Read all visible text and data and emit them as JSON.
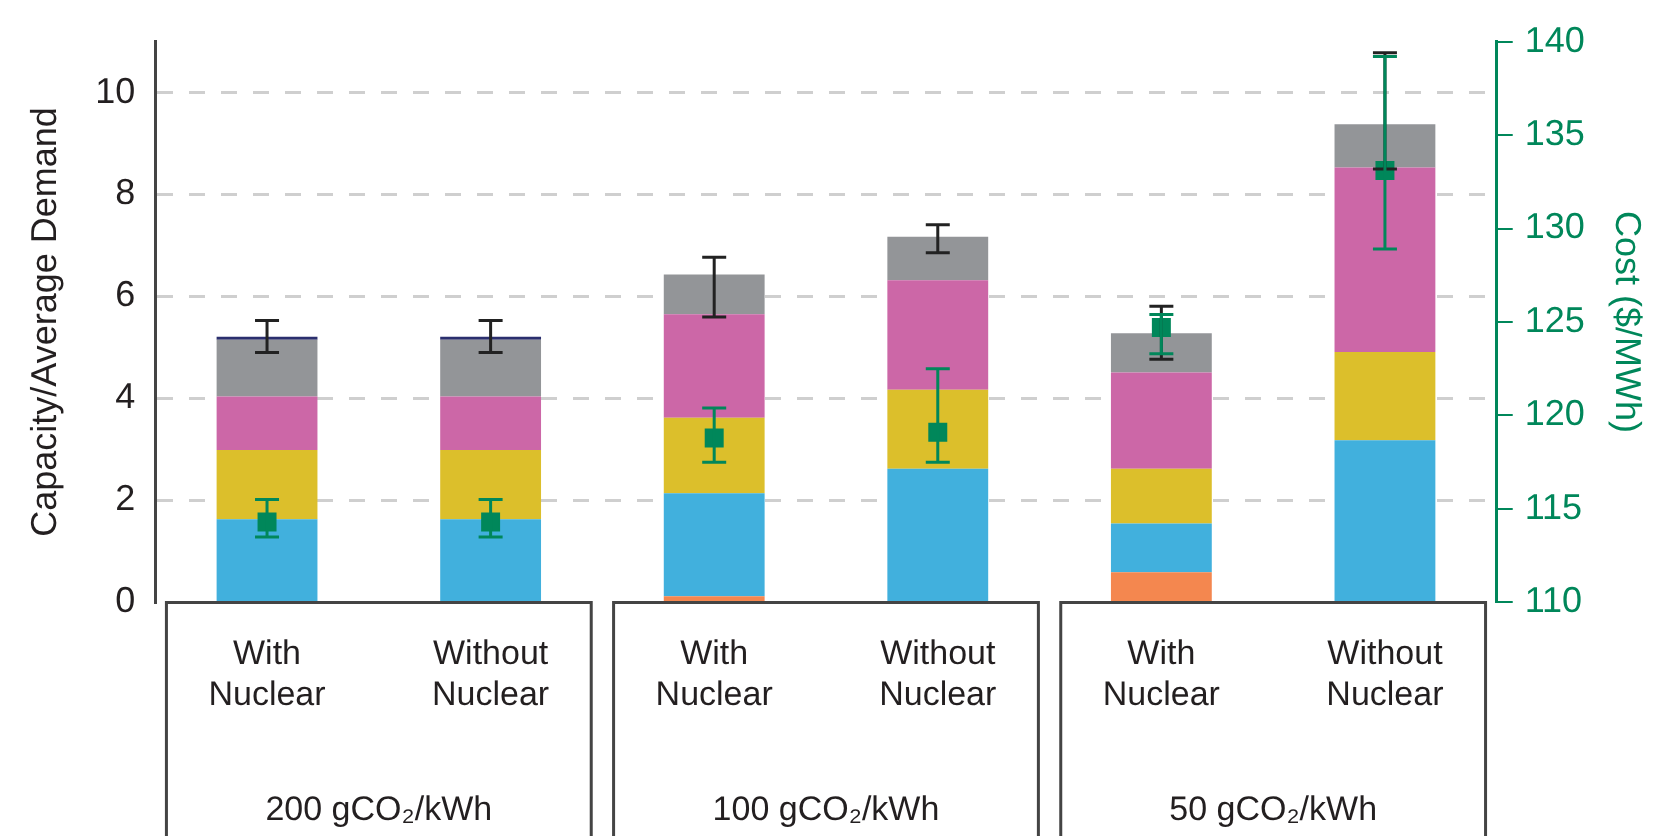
{
  "chart_data": {
    "type": "bar",
    "stacked": true,
    "categories": [
      "With Nuclear",
      "Without Nuclear",
      "With Nuclear",
      "Without Nuclear",
      "With Nuclear",
      "Without Nuclear"
    ],
    "ylabel": "Capacity/Average Demand",
    "y2label": "Cost ($/MWh)",
    "ylim": [
      0,
      11
    ],
    "yticks": [
      0,
      2,
      4,
      6,
      8,
      10
    ],
    "y2lim": [
      110,
      140
    ],
    "y2ticks": [
      110,
      115,
      120,
      125,
      130,
      135,
      140
    ],
    "grid": "y",
    "legend": false,
    "series": [
      {
        "color": "#f4874f",
        "values": [
          null,
          null,
          0.12,
          null,
          0.59,
          null
        ]
      },
      {
        "color": "#41b0dd",
        "values": [
          1.63,
          1.63,
          2.02,
          2.62,
          0.96,
          3.18
        ]
      },
      {
        "color": "#dcbf2b",
        "values": [
          1.36,
          1.36,
          1.48,
          1.55,
          1.07,
          1.73
        ]
      },
      {
        "color": "#cc67a7",
        "values": [
          1.05,
          1.05,
          2.03,
          2.15,
          1.89,
          3.62
        ]
      },
      {
        "color": "#939598",
        "values": [
          1.11,
          1.11,
          0.78,
          0.85,
          0.77,
          0.85
        ],
        "errors": [
          [
            4.9,
            5.53
          ],
          [
            4.9,
            5.53
          ],
          [
            5.6,
            6.77
          ],
          [
            6.86,
            7.41
          ],
          [
            4.77,
            5.81
          ],
          [
            8.5,
            10.78
          ]
        ]
      },
      {
        "color": "#2b2f6e",
        "values": [
          0.06,
          0.06,
          null,
          null,
          null,
          null
        ]
      },
      {
        "type": "scatter",
        "axis": "y2",
        "color": "#00875a",
        "marker": "square",
        "values": [
          114.3,
          114.3,
          118.8,
          119.1,
          124.7,
          133.1
        ],
        "errors": [
          [
            113.5,
            115.5
          ],
          [
            113.5,
            115.5
          ],
          [
            117.5,
            120.4
          ],
          [
            117.5,
            122.5
          ],
          [
            123.3,
            125.4
          ],
          [
            128.9,
            139.2
          ]
        ]
      }
    ],
    "annotations": [
      "200 gCO₂/kWh",
      "100 gCO₂/kWh",
      "50 gCO₂/kWh"
    ]
  }
}
